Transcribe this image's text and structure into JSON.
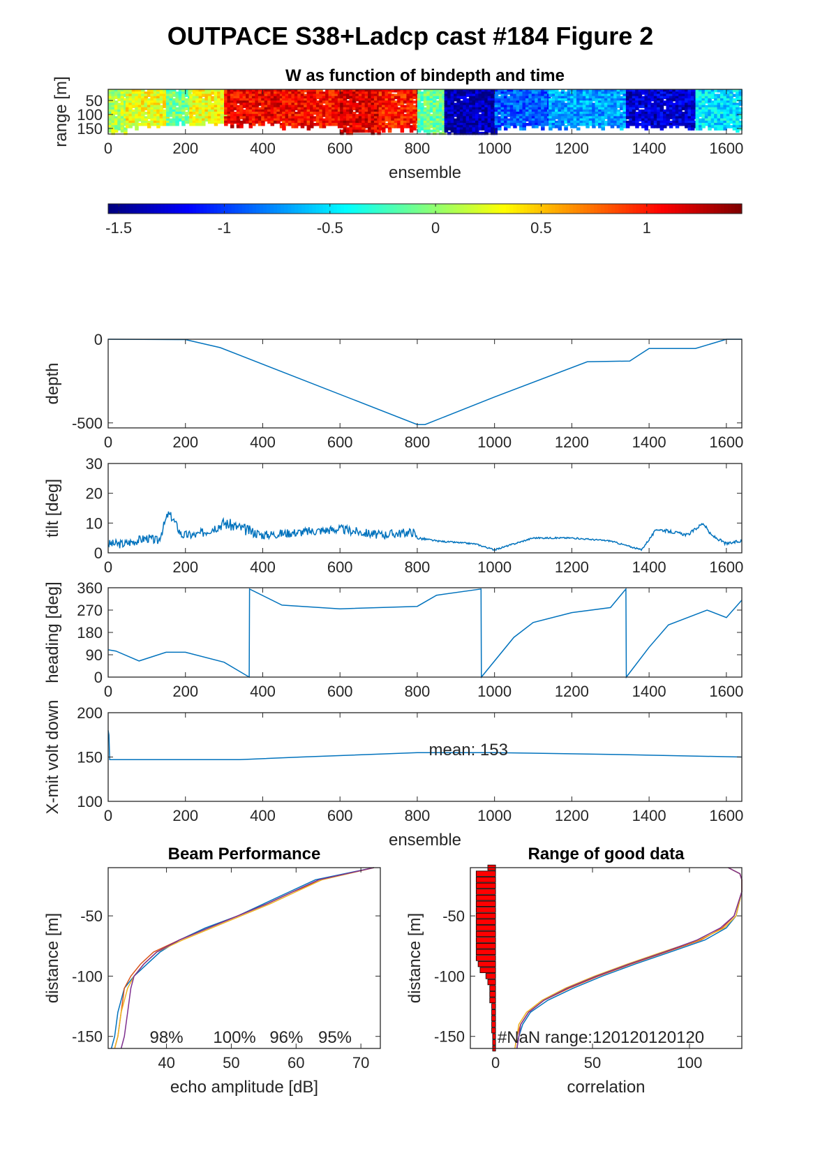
{
  "figure_title": "OUTPACE S38+Ladcp cast #184 Figure 2",
  "colors": {
    "line": "#0072BD",
    "axis": "#262626",
    "bar": "#FF0000",
    "beam": [
      "#0072BD",
      "#D95319",
      "#EDB120",
      "#7E2F8E"
    ]
  },
  "chart_data": [
    {
      "id": "w_image",
      "type": "heatmap",
      "title": "W as function of bindepth and time",
      "xlabel": "ensemble",
      "ylabel": "range [m]",
      "xlim": [
        0,
        1640
      ],
      "ylim": [
        170,
        10
      ],
      "xticks": [
        0,
        200,
        400,
        600,
        800,
        1000,
        1200,
        1400,
        1600
      ],
      "yticks": [
        50,
        100,
        150
      ],
      "segments": [
        {
          "x": [
            0,
            45
          ],
          "w": 0.1,
          "depth": 160
        },
        {
          "x": [
            45,
            150
          ],
          "w": 0.3,
          "depth": 140
        },
        {
          "x": [
            150,
            210
          ],
          "w": -0.1,
          "depth": 130
        },
        {
          "x": [
            210,
            300
          ],
          "w": 0.3,
          "depth": 135
        },
        {
          "x": [
            300,
            450
          ],
          "w": 1.1,
          "depth": 135
        },
        {
          "x": [
            450,
            600
          ],
          "w": 1.05,
          "depth": 140
        },
        {
          "x": [
            600,
            700
          ],
          "w": 1.15,
          "depth": 165
        },
        {
          "x": [
            700,
            800
          ],
          "w": 1.0,
          "depth": 150
        },
        {
          "x": [
            800,
            870
          ],
          "w": -0.1,
          "depth": 160
        },
        {
          "x": [
            870,
            1000
          ],
          "w": -1.4,
          "depth": 170
        },
        {
          "x": [
            1000,
            1140
          ],
          "w": -0.9,
          "depth": 140
        },
        {
          "x": [
            1140,
            1340
          ],
          "w": -0.7,
          "depth": 140
        },
        {
          "x": [
            1340,
            1520
          ],
          "w": -1.3,
          "depth": 140
        },
        {
          "x": [
            1520,
            1640
          ],
          "w": -0.5,
          "depth": 145
        }
      ]
    },
    {
      "id": "colorbar",
      "type": "colorbar",
      "clim": [
        -1.55,
        1.45
      ],
      "ticks": [
        -1.5,
        -1,
        -0.5,
        0,
        0.5,
        1
      ],
      "tick_labels": [
        "-1.5",
        "-1",
        "-0.5",
        "0",
        "0.5",
        "1"
      ]
    },
    {
      "id": "depth",
      "type": "line",
      "ylabel": "depth",
      "xlim": [
        0,
        1640
      ],
      "ylim": [
        -530,
        0
      ],
      "xticks": [
        0,
        200,
        400,
        600,
        800,
        1000,
        1200,
        1400,
        1600
      ],
      "yticks": [
        -500,
        0
      ],
      "x": [
        0,
        200,
        290,
        800,
        820,
        1000,
        1240,
        1350,
        1400,
        1520,
        1600,
        1640
      ],
      "y": [
        0,
        -2,
        -50,
        -510,
        -510,
        -345,
        -135,
        -130,
        -55,
        -55,
        0,
        0
      ]
    },
    {
      "id": "tilt",
      "type": "line",
      "ylabel": "tilt [deg]",
      "xlim": [
        0,
        1640
      ],
      "ylim": [
        0,
        30
      ],
      "xticks": [
        0,
        200,
        400,
        600,
        800,
        1000,
        1200,
        1400,
        1600
      ],
      "yticks": [
        0,
        10,
        20,
        30
      ],
      "x": [
        0,
        40,
        100,
        130,
        155,
        165,
        190,
        230,
        300,
        350,
        400,
        500,
        600,
        700,
        790,
        800,
        850,
        950,
        1000,
        1100,
        1200,
        1300,
        1380,
        1420,
        1500,
        1540,
        1560,
        1600,
        1640
      ],
      "y": [
        3,
        3,
        5,
        4,
        13,
        12,
        6,
        6,
        10,
        8,
        6,
        7,
        8,
        6,
        7,
        5,
        4,
        3,
        1,
        5,
        5,
        4,
        1,
        8,
        6,
        10,
        6,
        3,
        4
      ],
      "noise": [
        3,
        3,
        3,
        3,
        3,
        3,
        3,
        3,
        4,
        4,
        3,
        3,
        3,
        3,
        3,
        1,
        0.5,
        0.5,
        0.5,
        0.5,
        0.5,
        0.5,
        0.5,
        1,
        1,
        1,
        1,
        1,
        1
      ]
    },
    {
      "id": "heading",
      "type": "line",
      "ylabel": "heading [deg]",
      "xlim": [
        0,
        1640
      ],
      "ylim": [
        0,
        360
      ],
      "xticks": [
        0,
        200,
        400,
        600,
        800,
        1000,
        1200,
        1400,
        1600
      ],
      "yticks": [
        0,
        90,
        180,
        270,
        360
      ],
      "x": [
        0,
        20,
        80,
        150,
        200,
        300,
        365,
        366,
        450,
        600,
        800,
        850,
        965,
        966,
        1050,
        1100,
        1200,
        1300,
        1340,
        1341,
        1400,
        1450,
        1550,
        1600,
        1640
      ],
      "y": [
        110,
        105,
        65,
        100,
        100,
        60,
        0,
        355,
        290,
        275,
        285,
        330,
        355,
        0,
        160,
        220,
        260,
        280,
        355,
        0,
        120,
        210,
        270,
        240,
        310
      ]
    },
    {
      "id": "volt",
      "type": "line",
      "ylabel": "X-mit volt down",
      "xlabel": "ensemble",
      "annotation": "mean: 153",
      "xlim": [
        0,
        1640
      ],
      "ylim": [
        100,
        200
      ],
      "xticks": [
        0,
        200,
        400,
        600,
        800,
        1000,
        1200,
        1400,
        1600
      ],
      "yticks": [
        100,
        150,
        200
      ],
      "x": [
        0,
        2,
        4,
        340,
        500,
        800,
        1000,
        1300,
        1640
      ],
      "y": [
        180,
        175,
        147,
        147,
        150,
        155,
        155,
        153,
        150
      ]
    },
    {
      "id": "beam",
      "type": "line",
      "title": "Beam Performance",
      "xlabel": "echo amplitude [dB]",
      "ylabel": "distance [m]",
      "xlim": [
        31,
        73
      ],
      "ylim": [
        -160,
        -10
      ],
      "xticks": [
        40,
        50,
        60,
        70
      ],
      "yticks": [
        -150,
        -100,
        -50
      ],
      "percent_labels": [
        "98%",
        "100%",
        "96%",
        "95%"
      ],
      "series": [
        {
          "y": [
            -10,
            -20,
            -30,
            -40,
            -50,
            -60,
            -70,
            -80,
            -90,
            -100,
            -110,
            -130,
            -150,
            -160
          ],
          "x": [
            72,
            63,
            59,
            55,
            51,
            46,
            42,
            39,
            37,
            35,
            33.5,
            32.5,
            32,
            31.5
          ]
        },
        {
          "y": [
            -10,
            -20,
            -30,
            -40,
            -50,
            -60,
            -70,
            -80,
            -90,
            -100,
            -110,
            -130,
            -150,
            -160
          ],
          "x": [
            72,
            64,
            59.5,
            55.5,
            51,
            46.5,
            42,
            38,
            36,
            34.5,
            33.5,
            33,
            32.5,
            32
          ]
        },
        {
          "y": [
            -10,
            -20,
            -30,
            -40,
            -50,
            -60,
            -70,
            -80,
            -90,
            -100,
            -110,
            -130,
            -150,
            -160
          ],
          "x": [
            72,
            64,
            60,
            56,
            51.5,
            47,
            42.5,
            38.5,
            36.5,
            35,
            34,
            33,
            32.5,
            32
          ]
        },
        {
          "y": [
            -10,
            -20,
            -30,
            -40,
            -50,
            -60,
            -70,
            -80,
            -90,
            -100,
            -110,
            -130,
            -150,
            -160
          ],
          "x": [
            72,
            63.5,
            59.5,
            55.5,
            51,
            46.5,
            42,
            38.5,
            36.5,
            35,
            34.5,
            34,
            33.5,
            33
          ]
        }
      ]
    },
    {
      "id": "corr",
      "type": "line",
      "title": "Range of good data",
      "xlabel": "correlation",
      "ylabel": "distance [m]",
      "xlim": [
        -13,
        127
      ],
      "ylim": [
        -160,
        -10
      ],
      "xticks": [
        0,
        50,
        100
      ],
      "yticks": [
        -150,
        -100,
        -50
      ],
      "annotation": "#NaN range:120120120120",
      "bars": [
        {
          "y": -10,
          "v": 4
        },
        {
          "y": -15,
          "v": 10
        },
        {
          "y": -20,
          "v": 10
        },
        {
          "y": -25,
          "v": 10
        },
        {
          "y": -30,
          "v": 10
        },
        {
          "y": -35,
          "v": 10
        },
        {
          "y": -40,
          "v": 10
        },
        {
          "y": -45,
          "v": 10
        },
        {
          "y": -50,
          "v": 10
        },
        {
          "y": -55,
          "v": 10
        },
        {
          "y": -60,
          "v": 10
        },
        {
          "y": -65,
          "v": 10
        },
        {
          "y": -70,
          "v": 10
        },
        {
          "y": -75,
          "v": 10
        },
        {
          "y": -80,
          "v": 10
        },
        {
          "y": -85,
          "v": 10
        },
        {
          "y": -90,
          "v": 9
        },
        {
          "y": -95,
          "v": 8
        },
        {
          "y": -100,
          "v": 5
        },
        {
          "y": -105,
          "v": 4
        },
        {
          "y": -110,
          "v": 3
        },
        {
          "y": -115,
          "v": 3
        },
        {
          "y": -120,
          "v": 3
        },
        {
          "y": -125,
          "v": 2
        },
        {
          "y": -130,
          "v": 2
        },
        {
          "y": -135,
          "v": 2
        },
        {
          "y": -140,
          "v": 2
        },
        {
          "y": -145,
          "v": 2
        },
        {
          "y": -150,
          "v": 1.5
        },
        {
          "y": -155,
          "v": 1.5
        },
        {
          "y": -160,
          "v": 1.5
        }
      ],
      "series": [
        {
          "y": [
            -10,
            -15,
            -20,
            -30,
            -50,
            -60,
            -70,
            -80,
            -90,
            -100,
            -110,
            -120,
            -130,
            -140,
            -150,
            -160
          ],
          "x": [
            120,
            126,
            127,
            127,
            124,
            119,
            108,
            90,
            72,
            55,
            40,
            27,
            18,
            14,
            12,
            11
          ]
        },
        {
          "y": [
            -10,
            -15,
            -20,
            -30,
            -50,
            -60,
            -70,
            -80,
            -90,
            -100,
            -110,
            -120,
            -130,
            -140,
            -150,
            -160
          ],
          "x": [
            120,
            126,
            127,
            127,
            123,
            117,
            106,
            88,
            70,
            53,
            38,
            25,
            17,
            13,
            11,
            10
          ]
        },
        {
          "y": [
            -10,
            -15,
            -20,
            -30,
            -50,
            -60,
            -70,
            -80,
            -90,
            -100,
            -110,
            -120,
            -130,
            -140,
            -150,
            -160
          ],
          "x": [
            120,
            126,
            127,
            127,
            124,
            118,
            105,
            86,
            68,
            51,
            36,
            24,
            16,
            12,
            11,
            10
          ]
        },
        {
          "y": [
            -10,
            -15,
            -20,
            -30,
            -50,
            -60,
            -70,
            -80,
            -90,
            -100,
            -110,
            -120,
            -130,
            -140,
            -150,
            -160
          ],
          "x": [
            120,
            126,
            127,
            127,
            123,
            116,
            104,
            87,
            69,
            52,
            37,
            25,
            17,
            13,
            12,
            11
          ]
        }
      ]
    }
  ]
}
